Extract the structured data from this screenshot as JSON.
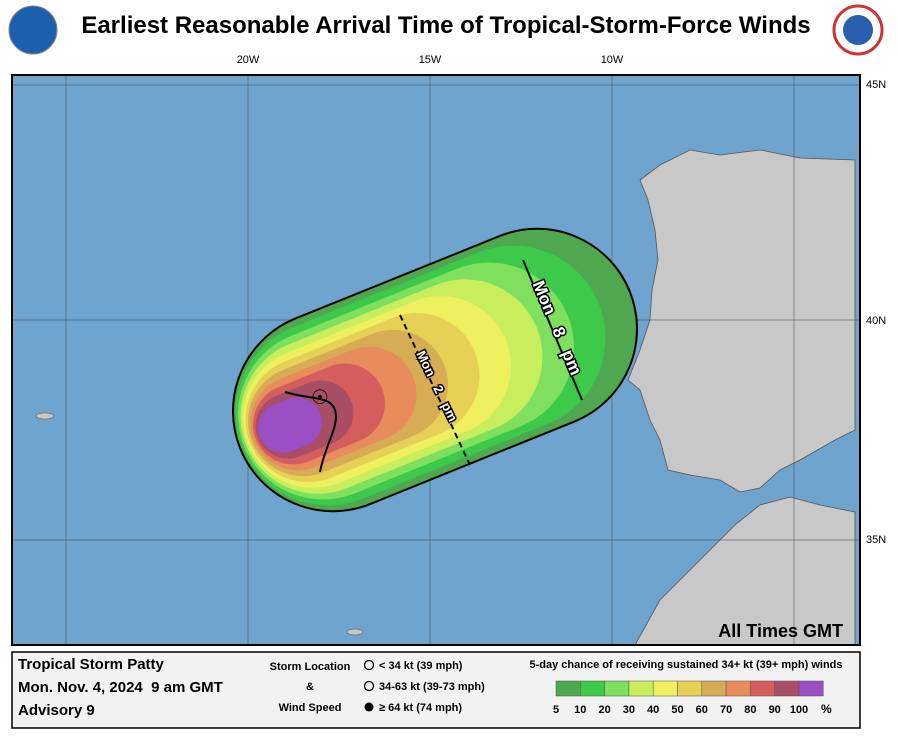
{
  "header": {
    "title": "Earliest Reasonable Arrival Time of Tropical-Storm-Force Winds"
  },
  "map": {
    "lon_labels": [
      "20W",
      "15W",
      "10W"
    ],
    "lat_labels": [
      "45N",
      "40N",
      "35N"
    ],
    "time_labels": [
      {
        "day": "Mon",
        "num": "2",
        "ampm": "pm"
      },
      {
        "day": "Mon",
        "num": "8",
        "ampm": "pm"
      }
    ],
    "note": "All Times GMT"
  },
  "info": {
    "storm": "Tropical Storm Patty",
    "date": "Mon. Nov. 4, 2024  9 am GMT",
    "advisory": "Advisory 9"
  },
  "key": {
    "title1": "Storm Location",
    "amp": "&",
    "title2": "Wind Speed",
    "items": [
      "< 34 kt (39 mph)",
      "34-63 kt (39-73 mph)",
      "≥ 64 kt (74 mph)"
    ]
  },
  "legend": {
    "title": "5-day chance of receiving sustained 34+ kt (39+ mph) winds",
    "unit": "%",
    "items": [
      {
        "label": "5",
        "color": "#4fa84f"
      },
      {
        "label": "10",
        "color": "#3dc94a"
      },
      {
        "label": "20",
        "color": "#7ee05e"
      },
      {
        "label": "30",
        "color": "#c8ee5e"
      },
      {
        "label": "40",
        "color": "#eef060"
      },
      {
        "label": "50",
        "color": "#e6d055"
      },
      {
        "label": "60",
        "color": "#d6ad55"
      },
      {
        "label": "70",
        "color": "#e88c5c"
      },
      {
        "label": "80",
        "color": "#d45e5e"
      },
      {
        "label": "90",
        "color": "#a84f66"
      },
      {
        "label": "100",
        "color": "#9a4fc4"
      }
    ]
  }
}
